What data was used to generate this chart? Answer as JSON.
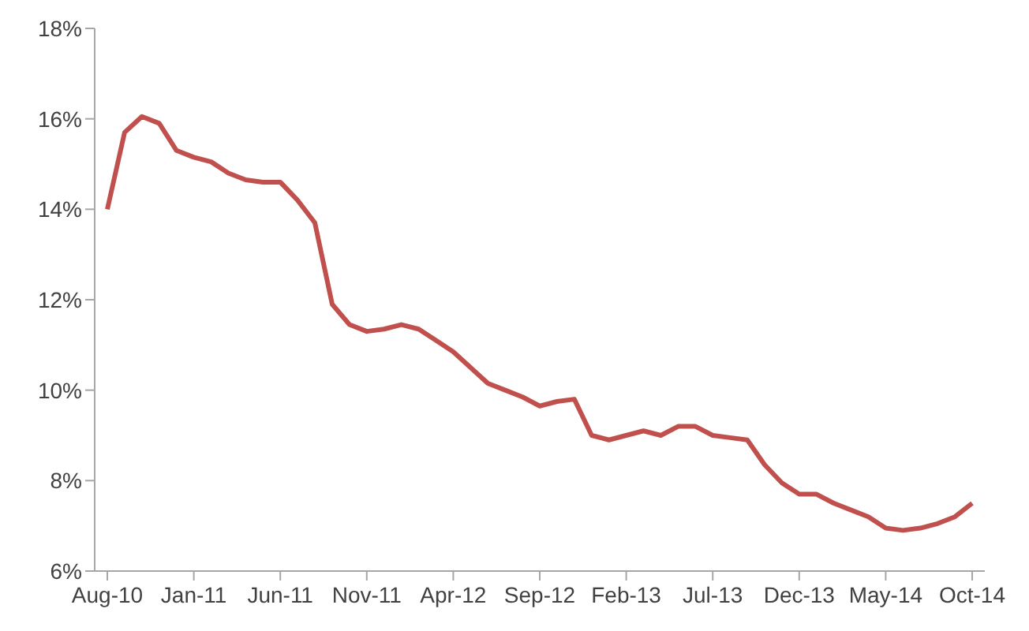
{
  "chart_data": {
    "type": "line",
    "categories": [
      "Aug-10",
      null,
      null,
      null,
      null,
      "Jan-11",
      null,
      null,
      null,
      null,
      "Jun-11",
      null,
      null,
      null,
      null,
      "Nov-11",
      null,
      null,
      null,
      null,
      "Apr-12",
      null,
      null,
      null,
      null,
      "Sep-12",
      null,
      null,
      null,
      null,
      "Feb-13",
      null,
      null,
      null,
      null,
      "Jul-13",
      null,
      null,
      null,
      null,
      "Dec-13",
      null,
      null,
      null,
      null,
      "May-14",
      null,
      null,
      null,
      null,
      "Oct-14"
    ],
    "series": [
      {
        "color": "#c0504d",
        "values": [
          14.0,
          15.7,
          16.05,
          15.9,
          15.3,
          15.15,
          15.05,
          14.8,
          14.65,
          14.6,
          14.6,
          14.2,
          13.7,
          11.9,
          11.45,
          11.3,
          11.35,
          11.45,
          11.35,
          11.1,
          10.85,
          10.5,
          10.15,
          10.0,
          9.85,
          9.65,
          9.75,
          9.8,
          9.0,
          8.9,
          9.0,
          9.1,
          9.0,
          9.2,
          9.2,
          9.0,
          8.95,
          8.9,
          8.35,
          7.95,
          7.7,
          7.7,
          7.5,
          7.35,
          7.2,
          6.95,
          6.9,
          6.95,
          7.05,
          7.2,
          7.5
        ]
      }
    ],
    "ylim": [
      6,
      18
    ],
    "yticks": [
      {
        "value": 6,
        "label": "6%"
      },
      {
        "value": 8,
        "label": "8%"
      },
      {
        "value": 10,
        "label": "10%"
      },
      {
        "value": 12,
        "label": "12%"
      },
      {
        "value": 14,
        "label": "14%"
      },
      {
        "value": 16,
        "label": "16%"
      },
      {
        "value": 18,
        "label": "18%"
      }
    ],
    "grid": false,
    "legend": false,
    "marker": "none",
    "line_style": "solid"
  }
}
